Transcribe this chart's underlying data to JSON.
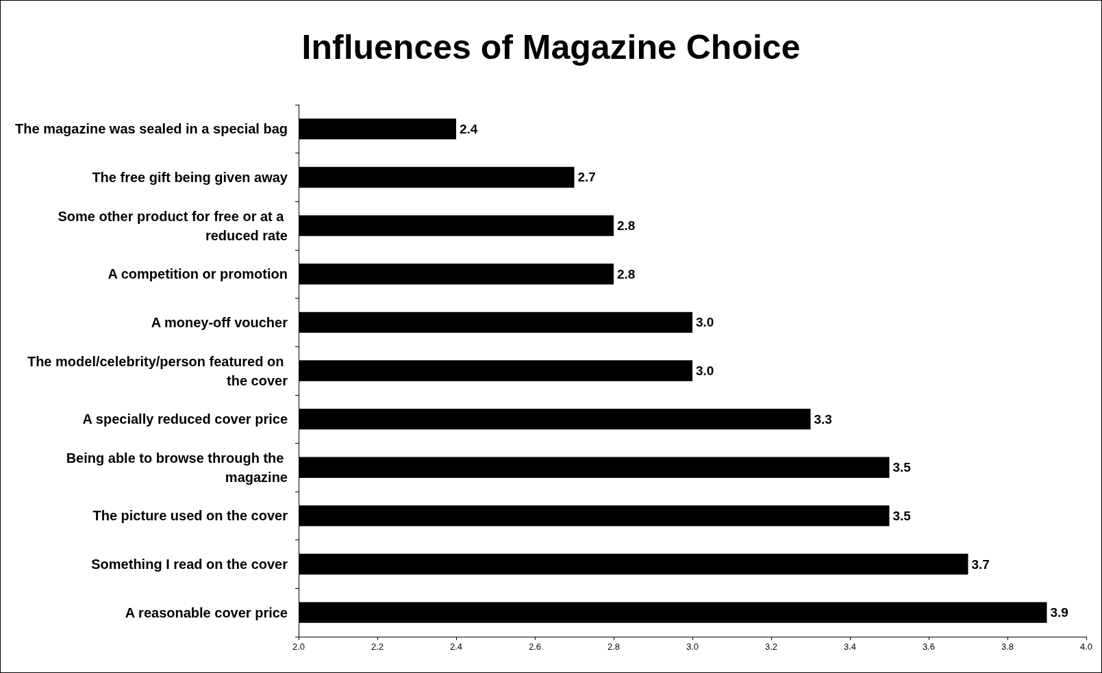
{
  "chart_data": {
    "type": "bar",
    "orientation": "horizontal",
    "title": "Influences of Magazine Choice",
    "categories": [
      "The magazine was sealed in a special bag",
      "The free gift being given away",
      "Some other product for free or at a reduced rate",
      "A competition or promotion",
      "A money-off voucher",
      "The model/celebrity/person featured on the cover",
      "A specially reduced cover price",
      "Being able to browse through the magazine",
      "The picture used on the cover",
      "Something I read on the cover",
      "A reasonable cover price"
    ],
    "values": [
      2.4,
      2.7,
      2.8,
      2.8,
      3.0,
      3.0,
      3.3,
      3.5,
      3.5,
      3.7,
      3.9
    ],
    "value_labels": [
      "2.4",
      "2.7",
      "2.8",
      "2.8",
      "3.0",
      "3.0",
      "3.3",
      "3.5",
      "3.5",
      "3.7",
      "3.9"
    ],
    "color": "#000000",
    "xlim": [
      2,
      4
    ],
    "xticks": [
      {
        "value": 2,
        "label": "2.0"
      },
      {
        "value": 2.2,
        "label": "2.2"
      },
      {
        "value": 2.4,
        "label": "2.4"
      },
      {
        "value": 2.6,
        "label": "2.6"
      },
      {
        "value": 2.8,
        "label": "2.8"
      },
      {
        "value": 3,
        "label": "3.0"
      },
      {
        "value": 3.2,
        "label": "3.2"
      },
      {
        "value": 3.4,
        "label": "3.4"
      },
      {
        "value": 3.6,
        "label": "3.6"
      },
      {
        "value": 3.8,
        "label": "3.8"
      },
      {
        "value": 4,
        "label": "4.0"
      }
    ],
    "grid": false
  }
}
